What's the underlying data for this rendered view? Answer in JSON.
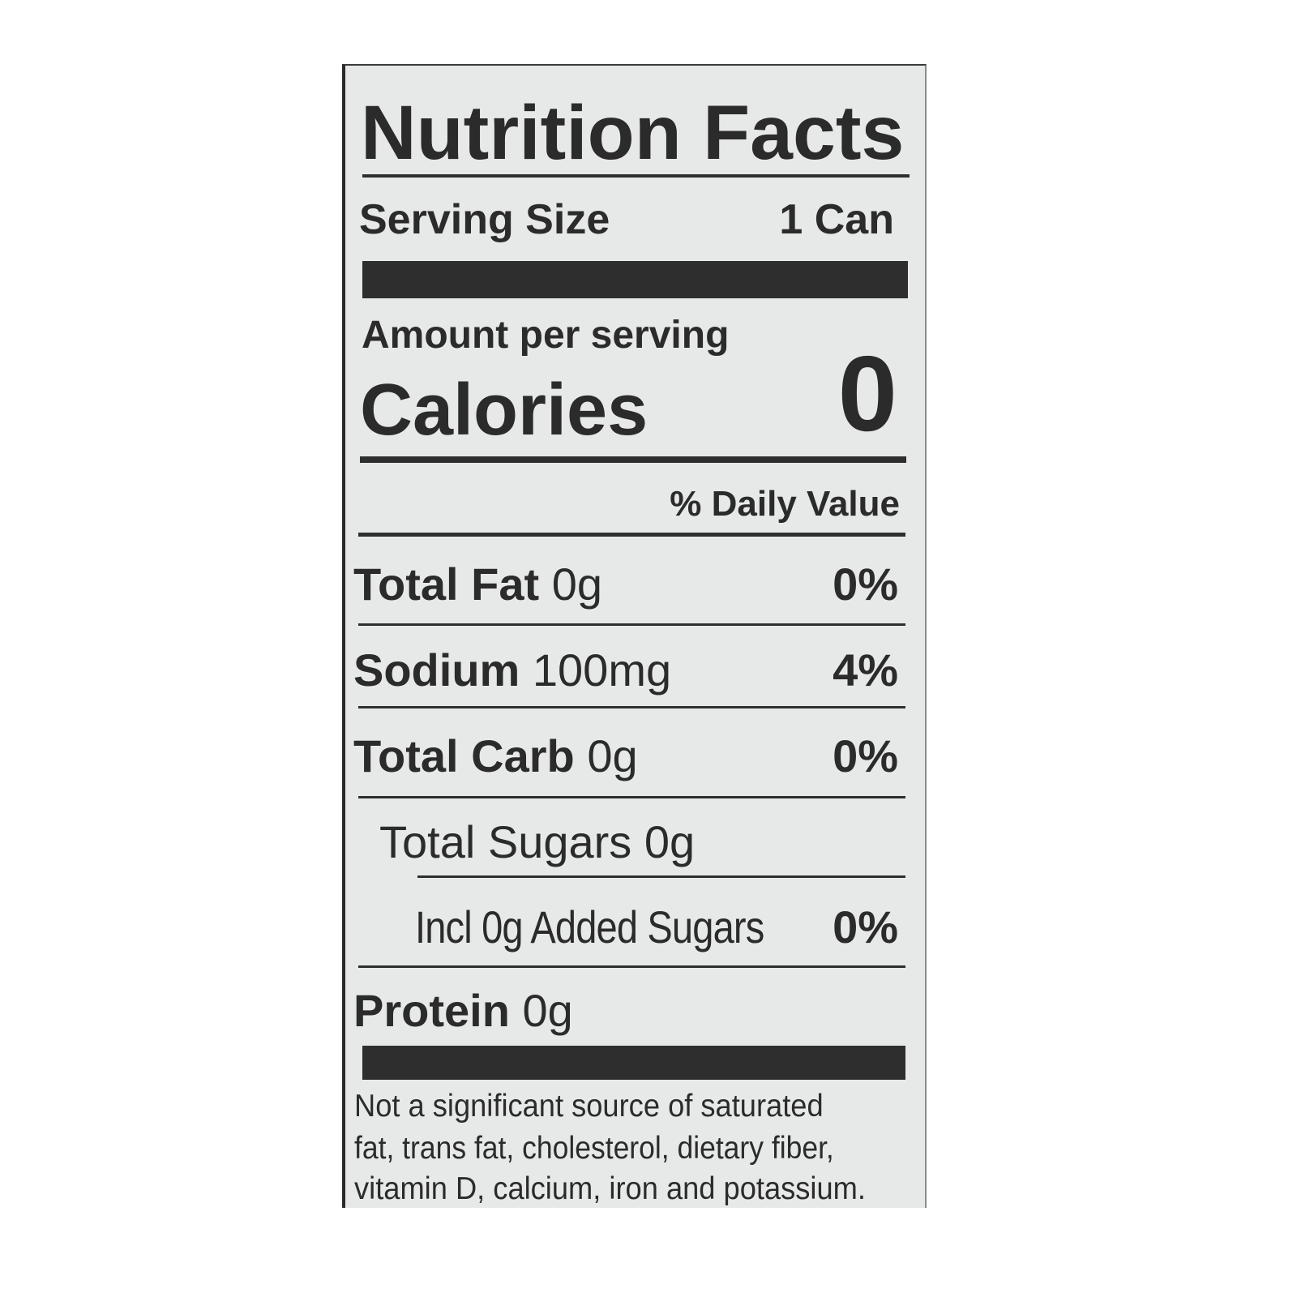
{
  "label": {
    "title": "Nutrition Facts",
    "serving_size_label": "Serving Size",
    "serving_size_value": "1 Can",
    "amount_per_serving": "Amount per serving",
    "calories_label": "Calories",
    "calories_value": "0",
    "daily_value_header": "% Daily Value",
    "nutrients": [
      {
        "name": "Total Fat",
        "amount": "0g",
        "dv": "0%"
      },
      {
        "name": "Sodium",
        "amount": "100mg",
        "dv": "4%"
      },
      {
        "name": "Total Carb",
        "amount": "0g",
        "dv": "0%"
      },
      {
        "name": "Total Sugars 0g",
        "amount": "",
        "dv": ""
      },
      {
        "name": "Incl 0g Added Sugars",
        "amount": "",
        "dv": "0%"
      },
      {
        "name": "Protein",
        "amount": "0g",
        "dv": ""
      }
    ],
    "footnote": [
      "Not a significant source of saturated",
      "fat, trans fat, cholesterol, dietary fiber,",
      "vitamin D, calcium, iron and potassium."
    ]
  }
}
